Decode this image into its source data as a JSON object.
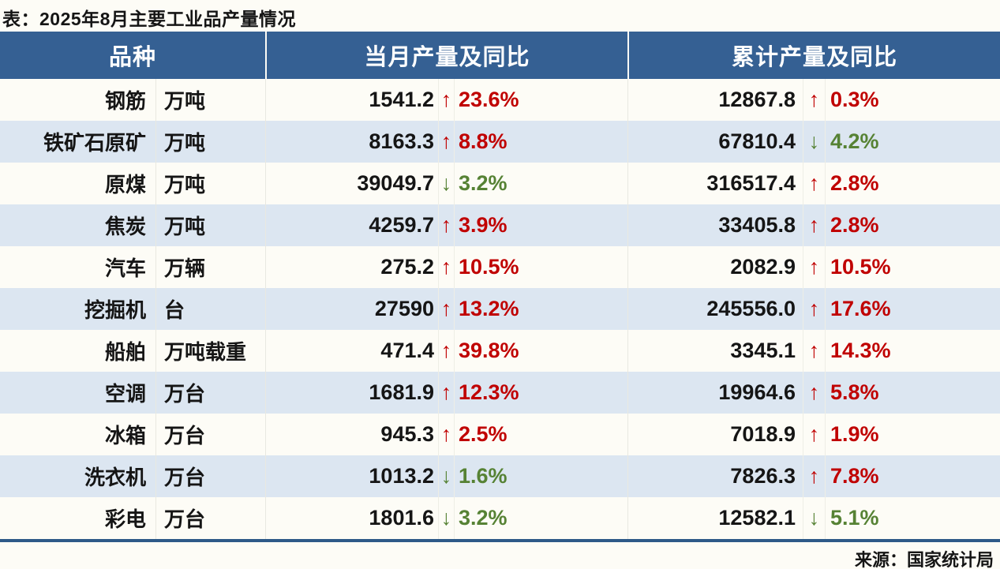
{
  "title": "表：2025年8月主要工业品产量情况",
  "source": "来源：国家统计局",
  "icons": {
    "arrow_up": "↑",
    "arrow_down": "↓"
  },
  "colors": {
    "header_bg": "#356093",
    "band_row_bg": "#dce6f1",
    "increase_red": "#c00000",
    "decrease_green": "#568234",
    "bottom_rule": "#2e5a88"
  },
  "chart_data": {
    "type": "table",
    "title": "表：2025年8月主要工业品产量情况",
    "source": "来源：国家统计局",
    "headers": [
      "品种",
      "当月产量及同比",
      "累计产量及同比"
    ],
    "legend": "up = 同比增长(红), down = 同比下降(绿)",
    "rows": [
      {
        "name": "钢筋",
        "unit": "万吨",
        "m_val": "1541.2",
        "m_dir": "up",
        "m_pct": "23.6%",
        "c_val": "12867.8",
        "c_dir": "up",
        "c_pct": "0.3%"
      },
      {
        "name": "铁矿石原矿",
        "unit": "万吨",
        "m_val": "8163.3",
        "m_dir": "up",
        "m_pct": "8.8%",
        "c_val": "67810.4",
        "c_dir": "down",
        "c_pct": "4.2%"
      },
      {
        "name": "原煤",
        "unit": "万吨",
        "m_val": "39049.7",
        "m_dir": "down",
        "m_pct": "3.2%",
        "c_val": "316517.4",
        "c_dir": "up",
        "c_pct": "2.8%"
      },
      {
        "name": "焦炭",
        "unit": "万吨",
        "m_val": "4259.7",
        "m_dir": "up",
        "m_pct": "3.9%",
        "c_val": "33405.8",
        "c_dir": "up",
        "c_pct": "2.8%"
      },
      {
        "name": "汽车",
        "unit": "万辆",
        "m_val": "275.2",
        "m_dir": "up",
        "m_pct": "10.5%",
        "c_val": "2082.9",
        "c_dir": "up",
        "c_pct": "10.5%"
      },
      {
        "name": "挖掘机",
        "unit": "台",
        "m_val": "27590",
        "m_dir": "up",
        "m_pct": "13.2%",
        "c_val": "245556.0",
        "c_dir": "up",
        "c_pct": "17.6%"
      },
      {
        "name": "船舶",
        "unit": "万吨载重",
        "m_val": "471.4",
        "m_dir": "up",
        "m_pct": "39.8%",
        "c_val": "3345.1",
        "c_dir": "up",
        "c_pct": "14.3%"
      },
      {
        "name": "空调",
        "unit": "万台",
        "m_val": "1681.9",
        "m_dir": "up",
        "m_pct": "12.3%",
        "c_val": "19964.6",
        "c_dir": "up",
        "c_pct": "5.8%"
      },
      {
        "name": "冰箱",
        "unit": "万台",
        "m_val": "945.3",
        "m_dir": "up",
        "m_pct": "2.5%",
        "c_val": "7018.9",
        "c_dir": "up",
        "c_pct": "1.9%"
      },
      {
        "name": "洗衣机",
        "unit": "万台",
        "m_val": "1013.2",
        "m_dir": "down",
        "m_pct": "1.6%",
        "c_val": "7826.3",
        "c_dir": "up",
        "c_pct": "7.8%"
      },
      {
        "name": "彩电",
        "unit": "万台",
        "m_val": "1801.6",
        "m_dir": "down",
        "m_pct": "3.2%",
        "c_val": "12582.1",
        "c_dir": "down",
        "c_pct": "5.1%"
      }
    ]
  }
}
